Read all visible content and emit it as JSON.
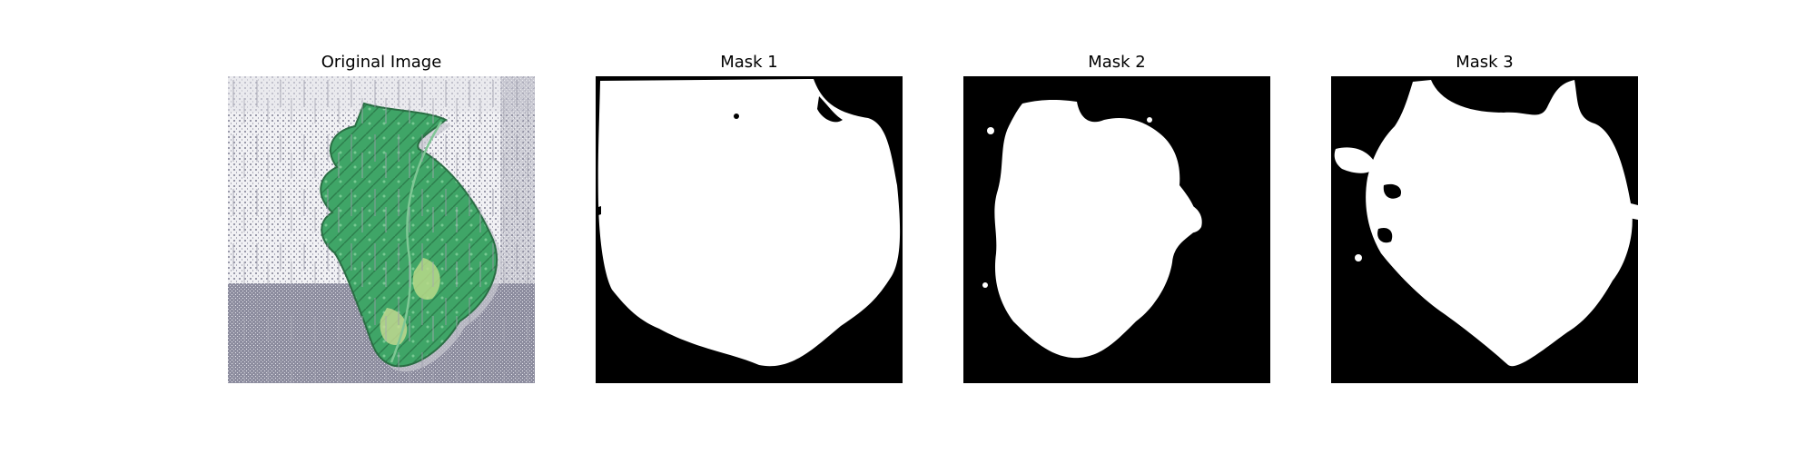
{
  "figure": {
    "panels": [
      {
        "title": "Original Image"
      },
      {
        "title": "Mask 1"
      },
      {
        "title": "Mask 2"
      },
      {
        "title": "Mask 3"
      }
    ]
  },
  "colors": {
    "background": "#ffffff",
    "mask_background": "#000000",
    "mask_foreground": "#ffffff",
    "leaf_green": "#4caf6e",
    "leaf_dark": "#2e7d4f",
    "leaf_light": "#a5d6a7",
    "noise_gray": "#8a8a9a",
    "backdrop_light": "#eeeef2"
  }
}
